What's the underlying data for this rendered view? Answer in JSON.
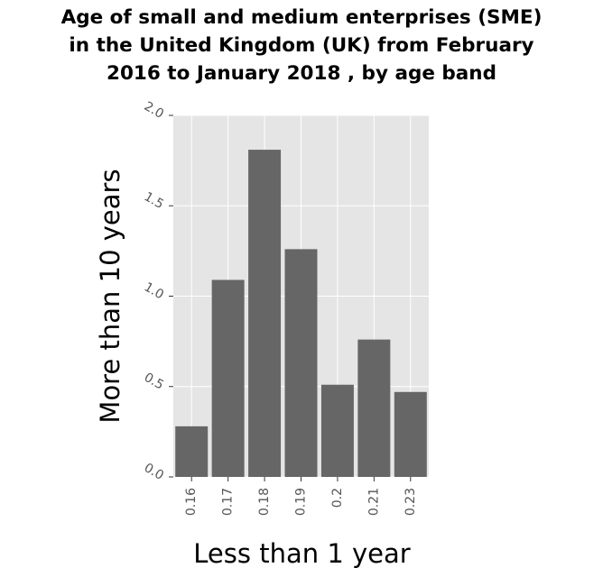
{
  "chart_data": {
    "type": "bar",
    "title_lines": [
      "Age of small and medium enterprises (SME)",
      "in the United Kingdom (UK) from February",
      "2016 to January 2018 , by age band"
    ],
    "xlabel": "Less than 1 year",
    "ylabel": "More than 10 years",
    "categories": [
      "0.16",
      "0.17",
      "0.18",
      "0.19",
      "0.2",
      "0.21",
      "0.23"
    ],
    "values": [
      0.28,
      1.09,
      1.81,
      1.26,
      0.51,
      0.76,
      0.47
    ],
    "ylim": [
      0,
      2.0
    ],
    "yticks": [
      "0.0",
      "0.5",
      "1.0",
      "1.5",
      "2.0"
    ],
    "grid": true,
    "colors": {
      "bar": "#666666",
      "panel": "#e5e5e5",
      "grid": "#ffffff",
      "tick_text": "#555555"
    }
  }
}
